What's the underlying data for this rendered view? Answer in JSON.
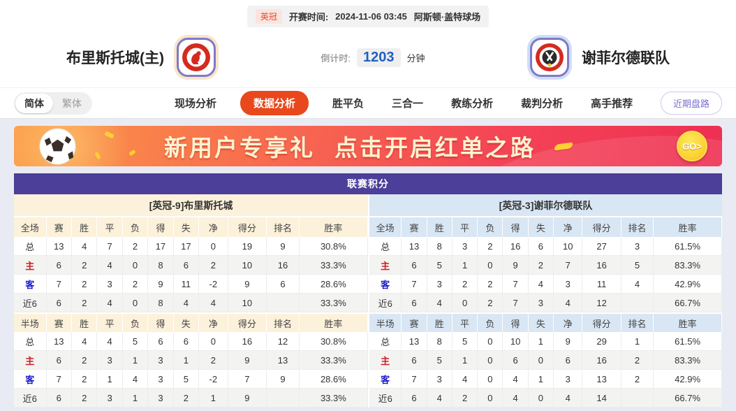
{
  "match_info": {
    "league_badge": "英冠",
    "kickoff_label": "开赛时间:",
    "kickoff_time": "2024-11-06 03:45",
    "venue": "阿斯顿·盖特球场"
  },
  "header": {
    "home_team": "布里斯托城(主)",
    "away_team": "谢菲尔德联队",
    "countdown_label": "倒计时:",
    "countdown_value": "1203",
    "countdown_unit": "分钟"
  },
  "nav": {
    "lang_options": [
      {
        "label": "简体",
        "active": true
      },
      {
        "label": "繁体",
        "active": false
      }
    ],
    "tabs": [
      {
        "label": "现场分析",
        "active": false
      },
      {
        "label": "数据分析",
        "active": true
      },
      {
        "label": "胜平负",
        "active": false
      },
      {
        "label": "三合一",
        "active": false
      },
      {
        "label": "教练分析",
        "active": false
      },
      {
        "label": "裁判分析",
        "active": false
      },
      {
        "label": "高手推荐",
        "active": false
      }
    ],
    "recent_button": "近期盘路"
  },
  "banner": {
    "text_left": "新用户专享礼",
    "text_right": "点击开启红单之路",
    "go_label": "GO>"
  },
  "league_table": {
    "title": "联赛积分",
    "columns_full": [
      "全场",
      "赛",
      "胜",
      "平",
      "负",
      "得",
      "失",
      "净",
      "得分",
      "排名",
      "胜率"
    ],
    "columns_half": [
      "半场",
      "赛",
      "胜",
      "平",
      "负",
      "得",
      "失",
      "净",
      "得分",
      "排名",
      "胜率"
    ],
    "col_widths": [
      "9.2%",
      "7.2%",
      "7.2%",
      "7.2%",
      "7.2%",
      "7.2%",
      "7.2%",
      "8.2%",
      "11%",
      "9.2%",
      "19.4%"
    ],
    "teams": [
      {
        "name": "[英冠-9]布里斯托城",
        "theme": "home",
        "full_rows": [
          {
            "label": "总",
            "values": [
              "13",
              "4",
              "7",
              "2",
              "17",
              "17",
              "0",
              "19",
              "9",
              "30.8%"
            ]
          },
          {
            "label": "主",
            "values": [
              "6",
              "2",
              "4",
              "0",
              "8",
              "6",
              "2",
              "10",
              "16",
              "33.3%"
            ]
          },
          {
            "label": "客",
            "values": [
              "7",
              "2",
              "3",
              "2",
              "9",
              "11",
              "-2",
              "9",
              "6",
              "28.6%"
            ]
          },
          {
            "label": "近6",
            "values": [
              "6",
              "2",
              "4",
              "0",
              "8",
              "4",
              "4",
              "10",
              "",
              "33.3%"
            ]
          }
        ],
        "half_rows": [
          {
            "label": "总",
            "values": [
              "13",
              "4",
              "4",
              "5",
              "6",
              "6",
              "0",
              "16",
              "12",
              "30.8%"
            ]
          },
          {
            "label": "主",
            "values": [
              "6",
              "2",
              "3",
              "1",
              "3",
              "1",
              "2",
              "9",
              "13",
              "33.3%"
            ]
          },
          {
            "label": "客",
            "values": [
              "7",
              "2",
              "1",
              "4",
              "3",
              "5",
              "-2",
              "7",
              "9",
              "28.6%"
            ]
          },
          {
            "label": "近6",
            "values": [
              "6",
              "2",
              "3",
              "1",
              "3",
              "2",
              "1",
              "9",
              "",
              "33.3%"
            ]
          }
        ]
      },
      {
        "name": "[英冠-3]谢菲尔德联队",
        "theme": "away",
        "full_rows": [
          {
            "label": "总",
            "values": [
              "13",
              "8",
              "3",
              "2",
              "16",
              "6",
              "10",
              "27",
              "3",
              "61.5%"
            ]
          },
          {
            "label": "主",
            "values": [
              "6",
              "5",
              "1",
              "0",
              "9",
              "2",
              "7",
              "16",
              "5",
              "83.3%"
            ]
          },
          {
            "label": "客",
            "values": [
              "7",
              "3",
              "2",
              "2",
              "7",
              "4",
              "3",
              "11",
              "4",
              "42.9%"
            ]
          },
          {
            "label": "近6",
            "values": [
              "6",
              "4",
              "0",
              "2",
              "7",
              "3",
              "4",
              "12",
              "",
              "66.7%"
            ]
          }
        ],
        "half_rows": [
          {
            "label": "总",
            "values": [
              "13",
              "8",
              "5",
              "0",
              "10",
              "1",
              "9",
              "29",
              "1",
              "61.5%"
            ]
          },
          {
            "label": "主",
            "values": [
              "6",
              "5",
              "1",
              "0",
              "6",
              "0",
              "6",
              "16",
              "2",
              "83.3%"
            ]
          },
          {
            "label": "客",
            "values": [
              "7",
              "3",
              "4",
              "0",
              "4",
              "1",
              "3",
              "13",
              "2",
              "42.9%"
            ]
          },
          {
            "label": "近6",
            "values": [
              "6",
              "4",
              "2",
              "0",
              "4",
              "0",
              "4",
              "14",
              "",
              "66.7%"
            ]
          }
        ]
      }
    ]
  },
  "colors": {
    "title_bar": "#4c3f99",
    "active_tab": "#e8481c",
    "home_theme": "#fcf1da",
    "away_theme": "#d9e6f3",
    "home_label_red": "#cc2020",
    "away_label_blue": "#1a1acc",
    "countdown_blue": "#1f5fc4",
    "badge_red": "#e14a31",
    "banner_cream": "#fdf2d2"
  }
}
